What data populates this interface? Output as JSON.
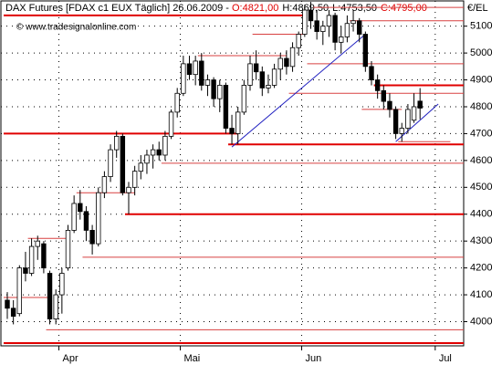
{
  "chart_data": {
    "type": "candlestick",
    "title": "DAX Futures [FDAX c1 EUX  Täglich] 26.06.2009 -",
    "ohlc_labels": [
      "O:4821,00",
      "H:4869,50",
      "L:4753,50",
      "C:4795,00"
    ],
    "ohlc_label_colors": [
      "#e00000",
      "#000000",
      "#000000",
      "#e00000"
    ],
    "watermark": "© www.tradesignalonline.com",
    "y_axis_unit": "€/EL",
    "categories": [
      null,
      null,
      null,
      null,
      null,
      null,
      null,
      null,
      null,
      "Apr",
      null,
      null,
      null,
      null,
      null,
      null,
      null,
      null,
      null,
      null,
      null,
      null,
      null,
      null,
      null,
      null,
      null,
      null,
      null,
      "Mai",
      null,
      null,
      null,
      null,
      null,
      null,
      null,
      null,
      null,
      null,
      null,
      null,
      null,
      null,
      null,
      null,
      null,
      null,
      null,
      "Jun",
      null,
      null,
      null,
      null,
      null,
      null,
      null,
      null,
      null,
      null,
      null,
      null,
      null,
      null,
      null,
      null,
      null,
      null,
      null,
      null,
      null,
      "Jul"
    ],
    "open": [
      4080,
      4050,
      4030,
      4200,
      4180,
      4280,
      4290,
      4180,
      4010,
      4100,
      4200,
      4340,
      4440,
      4410,
      4340,
      4290,
      4480,
      4540,
      4640,
      4690,
      4480,
      4500,
      4560,
      4590,
      4620,
      4640,
      4620,
      4690,
      4780,
      4850,
      4960,
      4920,
      4970,
      4880,
      4900,
      4830,
      4880,
      4720,
      4700,
      4780,
      4880,
      4960,
      4930,
      4870,
      4880,
      4940,
      4980,
      4950,
      5020,
      5070,
      5160,
      5120,
      5080,
      5100,
      5140,
      5040,
      5060,
      5110,
      5120,
      5070,
      4950,
      4900,
      4860,
      4820,
      4790,
      4700,
      4720,
      4750,
      4821,
      null,
      null,
      null
    ],
    "high": [
      4110,
      4080,
      4210,
      4260,
      4310,
      4320,
      4300,
      4190,
      4120,
      4200,
      4360,
      4470,
      4490,
      4430,
      4360,
      4500,
      4560,
      4660,
      4710,
      4700,
      4520,
      4580,
      4620,
      4640,
      4660,
      4670,
      4710,
      4790,
      4870,
      4990,
      4990,
      4990,
      5000,
      4920,
      4910,
      4900,
      4890,
      4770,
      4800,
      4900,
      4990,
      5010,
      4950,
      4920,
      4960,
      5000,
      5010,
      5040,
      5080,
      5180,
      5190,
      5160,
      5120,
      5160,
      5150,
      5100,
      5140,
      5160,
      5130,
      5080,
      4970,
      4920,
      4880,
      4850,
      4800,
      4740,
      4810,
      4850,
      4869.5,
      null,
      null,
      null
    ],
    "low": [
      4010,
      3990,
      4020,
      4150,
      4170,
      4230,
      4180,
      3990,
      3990,
      4030,
      4190,
      4330,
      4380,
      4300,
      4250,
      4280,
      4460,
      4520,
      4610,
      4470,
      4400,
      4470,
      4530,
      4550,
      4570,
      4600,
      4600,
      4680,
      4760,
      4840,
      4900,
      4880,
      4860,
      4840,
      4800,
      4780,
      4700,
      4660,
      4660,
      4770,
      4860,
      4900,
      4840,
      4850,
      4870,
      4900,
      4920,
      4930,
      4990,
      5060,
      5090,
      5050,
      5030,
      5060,
      5010,
      5000,
      5040,
      5080,
      5040,
      4930,
      4880,
      4830,
      4790,
      4760,
      4680,
      4670,
      4700,
      4740,
      4753.5,
      null,
      null,
      null
    ],
    "close": [
      4050,
      4020,
      4200,
      4180,
      4280,
      4300,
      4200,
      4010,
      4100,
      4180,
      4340,
      4440,
      4410,
      4340,
      4290,
      4480,
      4540,
      4640,
      4690,
      4480,
      4500,
      4560,
      4590,
      4620,
      4640,
      4620,
      4690,
      4780,
      4850,
      4960,
      4920,
      4970,
      4880,
      4900,
      4830,
      4880,
      4720,
      4700,
      4780,
      4880,
      4960,
      4930,
      4870,
      4880,
      4940,
      4980,
      4950,
      5020,
      5070,
      5160,
      5120,
      5080,
      5100,
      5140,
      5040,
      5060,
      5110,
      5120,
      5070,
      4950,
      4900,
      4860,
      4820,
      4790,
      4700,
      4720,
      4790,
      4800,
      4795,
      null,
      null,
      null
    ],
    "ylim": [
      3910,
      5194
    ],
    "yticks": [
      4000,
      4100,
      4200,
      4300,
      4400,
      4500,
      4600,
      4700,
      4800,
      4900,
      5000,
      5100
    ],
    "grid": true,
    "up_color": "#ffffff",
    "down_color": "#000000",
    "level_color": "#e00000",
    "minor_level_color": "#d84040",
    "trendline_color": "#2020c0",
    "major_levels": [
      {
        "value": 5140,
        "from": 0,
        "to": 49
      },
      {
        "value": 4700,
        "from": 0,
        "to": 38
      },
      {
        "value": 4400,
        "from": 20
      },
      {
        "value": 4660,
        "from": 37
      },
      {
        "value": 4880,
        "from": 61
      },
      {
        "value": 3920,
        "from": 0
      }
    ],
    "minor_levels": [
      {
        "value": 5170,
        "from": 51
      },
      {
        "value": 5120,
        "from": 57
      },
      {
        "value": 5070,
        "from": 41,
        "to": 49
      },
      {
        "value": 4990,
        "from": 32,
        "to": 46
      },
      {
        "value": 4960,
        "from": 50
      },
      {
        "value": 4850,
        "from": 47
      },
      {
        "value": 4790,
        "from": 59,
        "to": 65
      },
      {
        "value": 4590,
        "from": 26
      },
      {
        "value": 4480,
        "from": 12,
        "to": 21
      },
      {
        "value": 4310,
        "from": 4,
        "to": 10
      },
      {
        "value": 4240,
        "from": 13
      },
      {
        "value": 4090,
        "from": 0,
        "to": 7
      },
      {
        "value": 3970,
        "from": 7
      },
      {
        "value": 4670,
        "from": 65,
        "to": 73
      }
    ],
    "trendlines": [
      {
        "from": [
          37,
          4650
        ],
        "to": [
          59,
          5070
        ]
      },
      {
        "from": [
          64,
          4670
        ],
        "to": [
          71,
          4810
        ]
      }
    ]
  }
}
